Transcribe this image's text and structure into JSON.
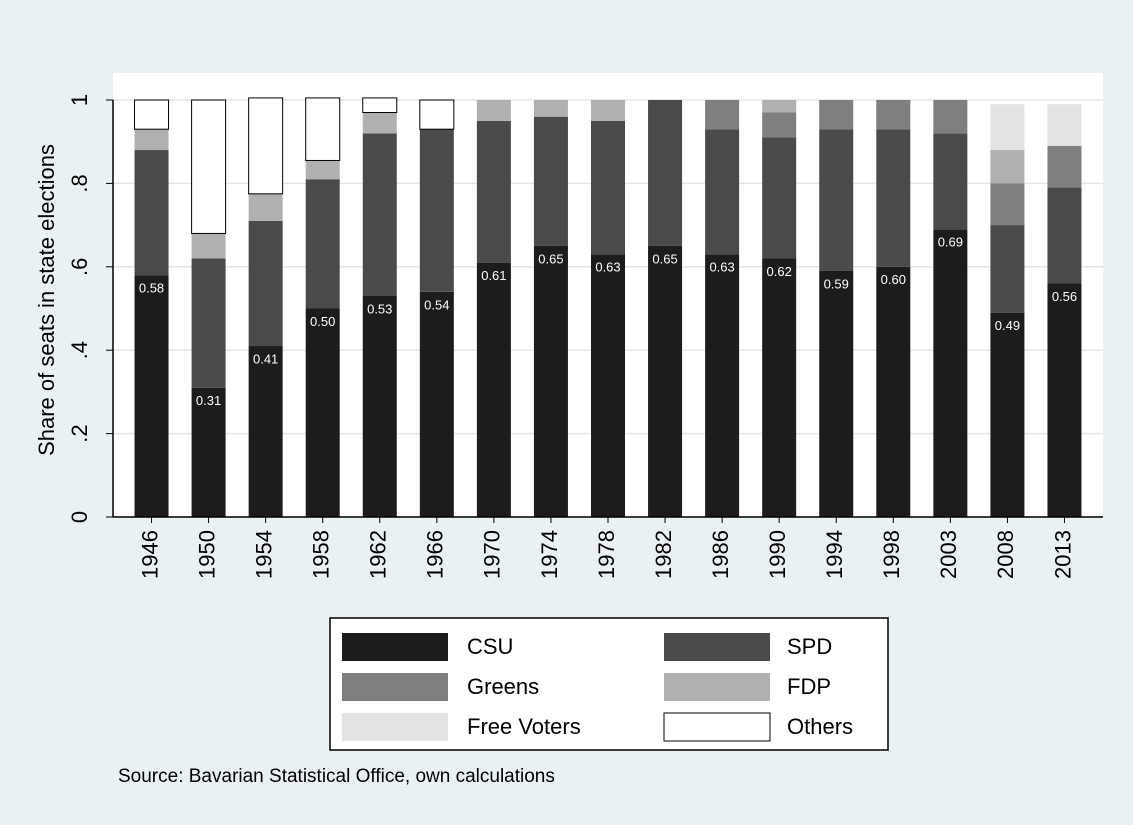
{
  "chart_data": {
    "type": "stacked_bar",
    "ylabel": "Share of seats in state elections",
    "source": "Source: Bavarian Statistical Office, own calculations",
    "categories": [
      "1946",
      "1950",
      "1954",
      "1958",
      "1962",
      "1966",
      "1970",
      "1974",
      "1978",
      "1982",
      "1986",
      "1990",
      "1994",
      "1998",
      "2003",
      "2008",
      "2013"
    ],
    "series": [
      {
        "name": "CSU",
        "color": "#1c1c1c",
        "values": [
          0.58,
          0.31,
          0.41,
          0.5,
          0.53,
          0.54,
          0.61,
          0.65,
          0.63,
          0.65,
          0.63,
          0.62,
          0.59,
          0.6,
          0.69,
          0.49,
          0.56
        ],
        "value_labels": [
          "0.58",
          "0.31",
          "0.41",
          "0.50",
          "0.53",
          "0.54",
          "0.61",
          "0.65",
          "0.63",
          "0.65",
          "0.63",
          "0.62",
          "0.59",
          "0.60",
          "0.69",
          "0.49",
          "0.56"
        ]
      },
      {
        "name": "SPD",
        "color": "#4a4a4a",
        "values": [
          0.3,
          0.31,
          0.3,
          0.31,
          0.39,
          0.39,
          0.34,
          0.31,
          0.32,
          0.35,
          0.3,
          0.29,
          0.34,
          0.33,
          0.23,
          0.21,
          0.23
        ]
      },
      {
        "name": "Greens",
        "color": "#7f7f7f",
        "values": [
          0,
          0,
          0,
          0,
          0,
          0,
          0,
          0,
          0,
          0,
          0.07,
          0.06,
          0.07,
          0.07,
          0.08,
          0.1,
          0.1
        ]
      },
      {
        "name": "FDP",
        "color": "#b0b0b0",
        "values": [
          0.05,
          0.06,
          0.065,
          0.045,
          0.05,
          0,
          0.05,
          0.04,
          0.05,
          0,
          0,
          0.03,
          0,
          0,
          0,
          0.08,
          0
        ]
      },
      {
        "name": "Free Voters",
        "color": "#e3e3e3",
        "values": [
          0,
          0,
          0,
          0,
          0,
          0,
          0,
          0,
          0,
          0,
          0,
          0,
          0,
          0,
          0,
          0.11,
          0.1
        ]
      },
      {
        "name": "Others",
        "color": "#ffffff",
        "values": [
          0.07,
          0.32,
          0.23,
          0.15,
          0.035,
          0.07,
          0,
          0,
          0,
          0,
          0,
          0,
          0,
          0,
          0,
          0,
          0
        ]
      }
    ],
    "ylim": [
      0,
      1
    ],
    "yticks": [
      0,
      {
        "value": 0.2,
        "label": ".2"
      },
      {
        "value": 0.4,
        "label": ".4"
      },
      {
        "value": 0.6,
        "label": ".6"
      },
      {
        "value": 0.8,
        "label": ".8"
      },
      1
    ],
    "grid": true
  }
}
